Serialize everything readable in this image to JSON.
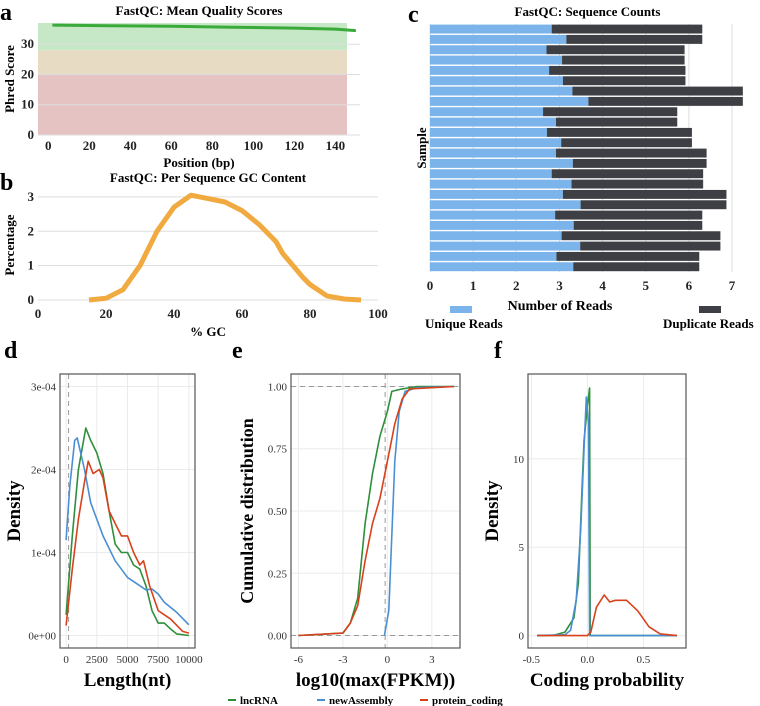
{
  "panel_labels": [
    "a",
    "b",
    "c",
    "d",
    "e",
    "f"
  ],
  "colors": {
    "green": "#2f8f3a",
    "blue": "#4a8fd4",
    "red": "#d8411c",
    "gc": "#f0aa40",
    "qline": "#3aaa3a",
    "unique": "#7ab4ea",
    "duplicate": "#3d3f44",
    "qc_good": "#c6e8c6",
    "qc_warn": "#e7dcc3",
    "qc_bad": "#e6c3c3"
  },
  "chart_data": [
    {
      "id": "a",
      "type": "line",
      "title": "FastQC: Mean Quality Scores",
      "xlabel": "Position (bp)",
      "ylabel": "Phred Score",
      "xlim": [
        -5,
        152
      ],
      "ylim": [
        0,
        37
      ],
      "xticks": [
        0,
        20,
        40,
        60,
        80,
        100,
        120,
        140
      ],
      "yticks": [
        0,
        10,
        20,
        30
      ],
      "zones": [
        {
          "from": 28,
          "to": 37,
          "color": "qc_good"
        },
        {
          "from": 20,
          "to": 28,
          "color": "qc_warn"
        },
        {
          "from": 0,
          "to": 20,
          "color": "qc_bad"
        }
      ],
      "series": [
        {
          "x": [
            2,
            30,
            60,
            90,
            120,
            140,
            150
          ],
          "y": [
            36.3,
            36.1,
            35.9,
            35.6,
            35.3,
            35.0,
            34.5
          ]
        }
      ]
    },
    {
      "id": "b",
      "type": "line",
      "title": "FastQC: Per Sequence GC Content",
      "xlabel": "% GC",
      "ylabel": "Percentage",
      "xlim": [
        0,
        100
      ],
      "ylim": [
        0,
        3.2
      ],
      "xticks": [
        0,
        20,
        40,
        60,
        80,
        100
      ],
      "yticks": [
        0,
        1,
        2,
        3
      ],
      "series": [
        {
          "x": [
            15,
            20,
            25,
            30,
            35,
            40,
            45,
            50,
            55,
            60,
            65,
            70,
            72,
            75,
            78,
            80,
            85,
            90,
            95
          ],
          "y": [
            0,
            0.05,
            0.3,
            1.0,
            2.0,
            2.7,
            3.05,
            2.95,
            2.85,
            2.6,
            2.2,
            1.7,
            1.35,
            1.0,
            0.65,
            0.45,
            0.12,
            0.03,
            0
          ]
        }
      ]
    },
    {
      "id": "c",
      "type": "bar",
      "orientation": "horizontal",
      "stacked": true,
      "title": "FastQC: Sequence Counts",
      "xlabel": "Number of Reads",
      "ylabel": "Sample",
      "xlim": [
        0,
        7.3
      ],
      "xticks": [
        0,
        1,
        2,
        3,
        4,
        5,
        6,
        7
      ],
      "series": [
        {
          "name": "Unique Reads",
          "color": "unique",
          "values": [
            2.82,
            3.16,
            2.7,
            3.06,
            2.76,
            3.08,
            3.3,
            3.67,
            2.62,
            2.92,
            2.71,
            3.04,
            2.92,
            3.31,
            2.82,
            3.28,
            3.08,
            3.49,
            2.9,
            3.33,
            3.05,
            3.48,
            2.93,
            3.32
          ]
        },
        {
          "name": "Duplicate Reads",
          "color": "duplicate",
          "values": [
            3.49,
            3.15,
            3.2,
            2.84,
            3.16,
            2.84,
            3.95,
            3.58,
            3.11,
            2.81,
            3.36,
            3.03,
            3.49,
            3.1,
            3.51,
            3.05,
            3.79,
            3.38,
            3.41,
            2.98,
            3.68,
            3.25,
            3.31,
            2.92
          ]
        }
      ]
    },
    {
      "id": "d",
      "type": "line",
      "xlabel": "Length(nt)",
      "ylabel": "Density",
      "xlim": [
        -500,
        10500
      ],
      "ylim": [
        -0.15,
        3.15
      ],
      "xticks": [
        0,
        2500,
        5000,
        7500,
        10000
      ],
      "yticks": [
        0,
        1,
        2,
        3
      ],
      "ytick_labels": [
        "0e+00",
        "1e-04",
        "2e-04",
        "3e-04"
      ],
      "vline": 200,
      "series": [
        {
          "name": "lncRNA",
          "color": "green",
          "x": [
            0,
            500,
            1000,
            1600,
            2000,
            2500,
            3000,
            3500,
            4000,
            4500,
            5000,
            5500,
            6000,
            6500,
            7000,
            7500,
            8000,
            8500,
            9000,
            10000
          ],
          "y": [
            0.25,
            1.2,
            2.0,
            2.5,
            2.35,
            2.2,
            1.95,
            1.5,
            1.1,
            1.0,
            1.0,
            0.85,
            0.8,
            0.6,
            0.3,
            0.15,
            0.15,
            0.08,
            0.02,
            0
          ]
        },
        {
          "name": "newAssembly",
          "color": "blue",
          "x": [
            0,
            300,
            700,
            900,
            1500,
            2000,
            3000,
            4000,
            5000,
            6000,
            6500,
            7000,
            7500,
            8000,
            9000,
            10000
          ],
          "y": [
            1.15,
            1.8,
            2.35,
            2.38,
            2.0,
            1.6,
            1.2,
            0.9,
            0.7,
            0.6,
            0.55,
            0.56,
            0.5,
            0.4,
            0.28,
            0.13
          ]
        },
        {
          "name": "protein_coding",
          "color": "red",
          "x": [
            0,
            500,
            1000,
            1500,
            1800,
            2200,
            2700,
            3000,
            3500,
            4000,
            4500,
            5000,
            5500,
            6000,
            6300,
            6800,
            7500,
            8000,
            8500,
            9500,
            10000
          ],
          "y": [
            0.12,
            0.8,
            1.4,
            1.85,
            2.1,
            1.95,
            2.0,
            1.9,
            1.5,
            1.35,
            1.2,
            1.2,
            1.0,
            0.85,
            0.9,
            0.6,
            0.3,
            0.25,
            0.2,
            0.05,
            0.03
          ]
        }
      ]
    },
    {
      "id": "e",
      "type": "line",
      "xlabel": "log10(max(FPKM))",
      "ylabel": "Cumulative distribution",
      "xlim": [
        -6.5,
        4.9
      ],
      "ylim": [
        -0.05,
        1.05
      ],
      "xticks": [
        -6,
        -3,
        0,
        3
      ],
      "yticks": [
        0,
        0.25,
        0.5,
        0.75,
        1
      ],
      "ytick_labels": [
        "0.00",
        "0.25",
        "0.50",
        "0.75",
        "1.00"
      ],
      "vline": -0.15,
      "hlines": [
        0,
        1
      ],
      "series": [
        {
          "name": "lncRNA",
          "color": "green",
          "x": [
            -6,
            -3,
            -2.5,
            -2,
            -1.5,
            -1,
            -0.5,
            0,
            0.3,
            1,
            2,
            4.5
          ],
          "y": [
            0,
            0.01,
            0.05,
            0.15,
            0.45,
            0.65,
            0.8,
            0.9,
            0.98,
            0.99,
            1,
            1
          ]
        },
        {
          "name": "newAssembly",
          "color": "blue",
          "x": [
            -0.2,
            0.1,
            0.3,
            0.5,
            0.8,
            1.2,
            2,
            4.5
          ],
          "y": [
            0,
            0.1,
            0.4,
            0.7,
            0.9,
            0.98,
            0.995,
            1
          ]
        },
        {
          "name": "protein_coding",
          "color": "red",
          "x": [
            -6,
            -3,
            -2.5,
            -2,
            -1.5,
            -1,
            -0.5,
            0,
            0.5,
            1,
            1.5,
            3,
            4.5
          ],
          "y": [
            0,
            0.01,
            0.05,
            0.12,
            0.3,
            0.45,
            0.55,
            0.7,
            0.85,
            0.95,
            0.99,
            0.995,
            1
          ]
        }
      ]
    },
    {
      "id": "f",
      "type": "line",
      "xlabel": "Coding probability",
      "ylabel": "Density",
      "xlim": [
        -0.53,
        0.88
      ],
      "ylim": [
        -0.7,
        14.8
      ],
      "xticks": [
        -0.5,
        0,
        0.5
      ],
      "xtick_labels": [
        "-0.5",
        "0.0",
        "0.5"
      ],
      "yticks": [
        0,
        5,
        10
      ],
      "series": [
        {
          "name": "lncRNA",
          "color": "green",
          "x": [
            -0.45,
            -0.3,
            -0.2,
            -0.12,
            -0.08,
            -0.05,
            -0.03,
            0,
            0.02,
            0.025,
            0.8
          ],
          "y": [
            0,
            0.02,
            0.2,
            1.0,
            3,
            8,
            11,
            13,
            14,
            0,
            0
          ]
        },
        {
          "name": "newAssembly",
          "color": "blue",
          "x": [
            -0.45,
            -0.2,
            -0.15,
            -0.1,
            -0.06,
            -0.03,
            -0.01,
            0.01,
            0.02,
            0.8
          ],
          "y": [
            0,
            0.05,
            0.3,
            2,
            6,
            10.5,
            13.5,
            12,
            0,
            0
          ]
        },
        {
          "name": "protein_coding",
          "color": "red",
          "x": [
            -0.45,
            0,
            0.03,
            0.08,
            0.15,
            0.2,
            0.25,
            0.35,
            0.45,
            0.55,
            0.65,
            0.8
          ],
          "y": [
            0,
            0,
            0.2,
            1.6,
            2.3,
            1.9,
            2.0,
            2.0,
            1.4,
            0.5,
            0.1,
            0
          ]
        }
      ]
    }
  ],
  "legend": [
    {
      "name": "lncRNA",
      "color": "green"
    },
    {
      "name": "newAssembly",
      "color": "blue"
    },
    {
      "name": "protein_coding",
      "color": "red"
    }
  ]
}
